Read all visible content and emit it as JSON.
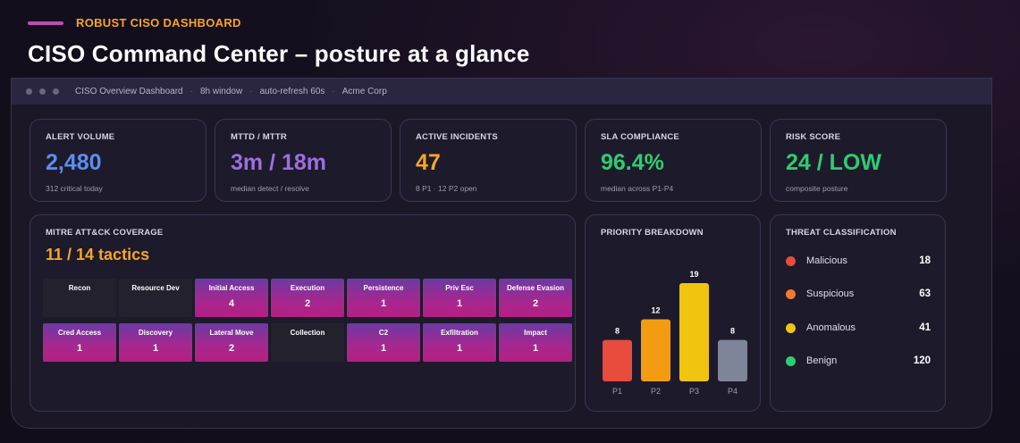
{
  "header": {
    "kicker": "ROBUST CISO DASHBOARD",
    "title": "CISO Command Center – posture at a glance"
  },
  "window": {
    "title": "CISO Overview Dashboard",
    "window_range": "8h window",
    "refresh": "auto-refresh 60s",
    "org": "Acme Corp",
    "separator": "·"
  },
  "kpis": [
    {
      "label": "ALERT VOLUME",
      "value": "2,480",
      "sub": "312 critical today",
      "color": "#5b8ef0"
    },
    {
      "label": "MTTD / MTTR",
      "value": "3m / 18m",
      "sub": "median detect / resolve",
      "color": "#9b6fe0"
    },
    {
      "label": "ACTIVE INCIDENTS",
      "value": "47",
      "sub": "8 P1 · 12 P2 open",
      "color": "#f5a623"
    },
    {
      "label": "SLA COMPLIANCE",
      "value": "96.4%",
      "sub": "median across P1-P4",
      "color": "#2ecc71"
    },
    {
      "label": "RISK SCORE",
      "value": "24 / LOW",
      "sub": "composite posture",
      "color": "#2ecc71"
    }
  ],
  "mitre": {
    "label": "MITRE ATT&CK COVERAGE",
    "value": "11 / 14 tactics",
    "tactics": [
      {
        "name": "Recon",
        "count": ""
      },
      {
        "name": "Resource Dev",
        "count": ""
      },
      {
        "name": "Initial Access",
        "count": "4"
      },
      {
        "name": "Execution",
        "count": "2"
      },
      {
        "name": "Persistence",
        "count": "1"
      },
      {
        "name": "Priv Esc",
        "count": "1"
      },
      {
        "name": "Defense Evasion",
        "count": "2"
      },
      {
        "name": "Cred Access",
        "count": "1"
      },
      {
        "name": "Discovery",
        "count": "1"
      },
      {
        "name": "Lateral Move",
        "count": "2"
      },
      {
        "name": "Collection",
        "count": ""
      },
      {
        "name": "C2",
        "count": "1"
      },
      {
        "name": "Exfiltration",
        "count": "1"
      },
      {
        "name": "Impact",
        "count": "1"
      }
    ]
  },
  "priority": {
    "label": "PRIORITY BREAKDOWN"
  },
  "chart_data": {
    "type": "bar",
    "title": "PRIORITY BREAKDOWN",
    "categories": [
      "P1",
      "P2",
      "P3",
      "P4"
    ],
    "values": [
      8,
      12,
      19,
      8
    ],
    "colors": [
      "#e74c3c",
      "#f39c12",
      "#f1c40f",
      "#7f8598"
    ],
    "ylim": [
      0,
      19
    ]
  },
  "threat": {
    "label": "THREAT CLASSIFICATION",
    "items": [
      {
        "name": "Malicious",
        "count": "18",
        "color": "#e74c3c"
      },
      {
        "name": "Suspicious",
        "count": "63",
        "color": "#f37a2b"
      },
      {
        "name": "Anomalous",
        "count": "41",
        "color": "#f1c40f"
      },
      {
        "name": "Benign",
        "count": "120",
        "color": "#2ecc71"
      }
    ]
  }
}
